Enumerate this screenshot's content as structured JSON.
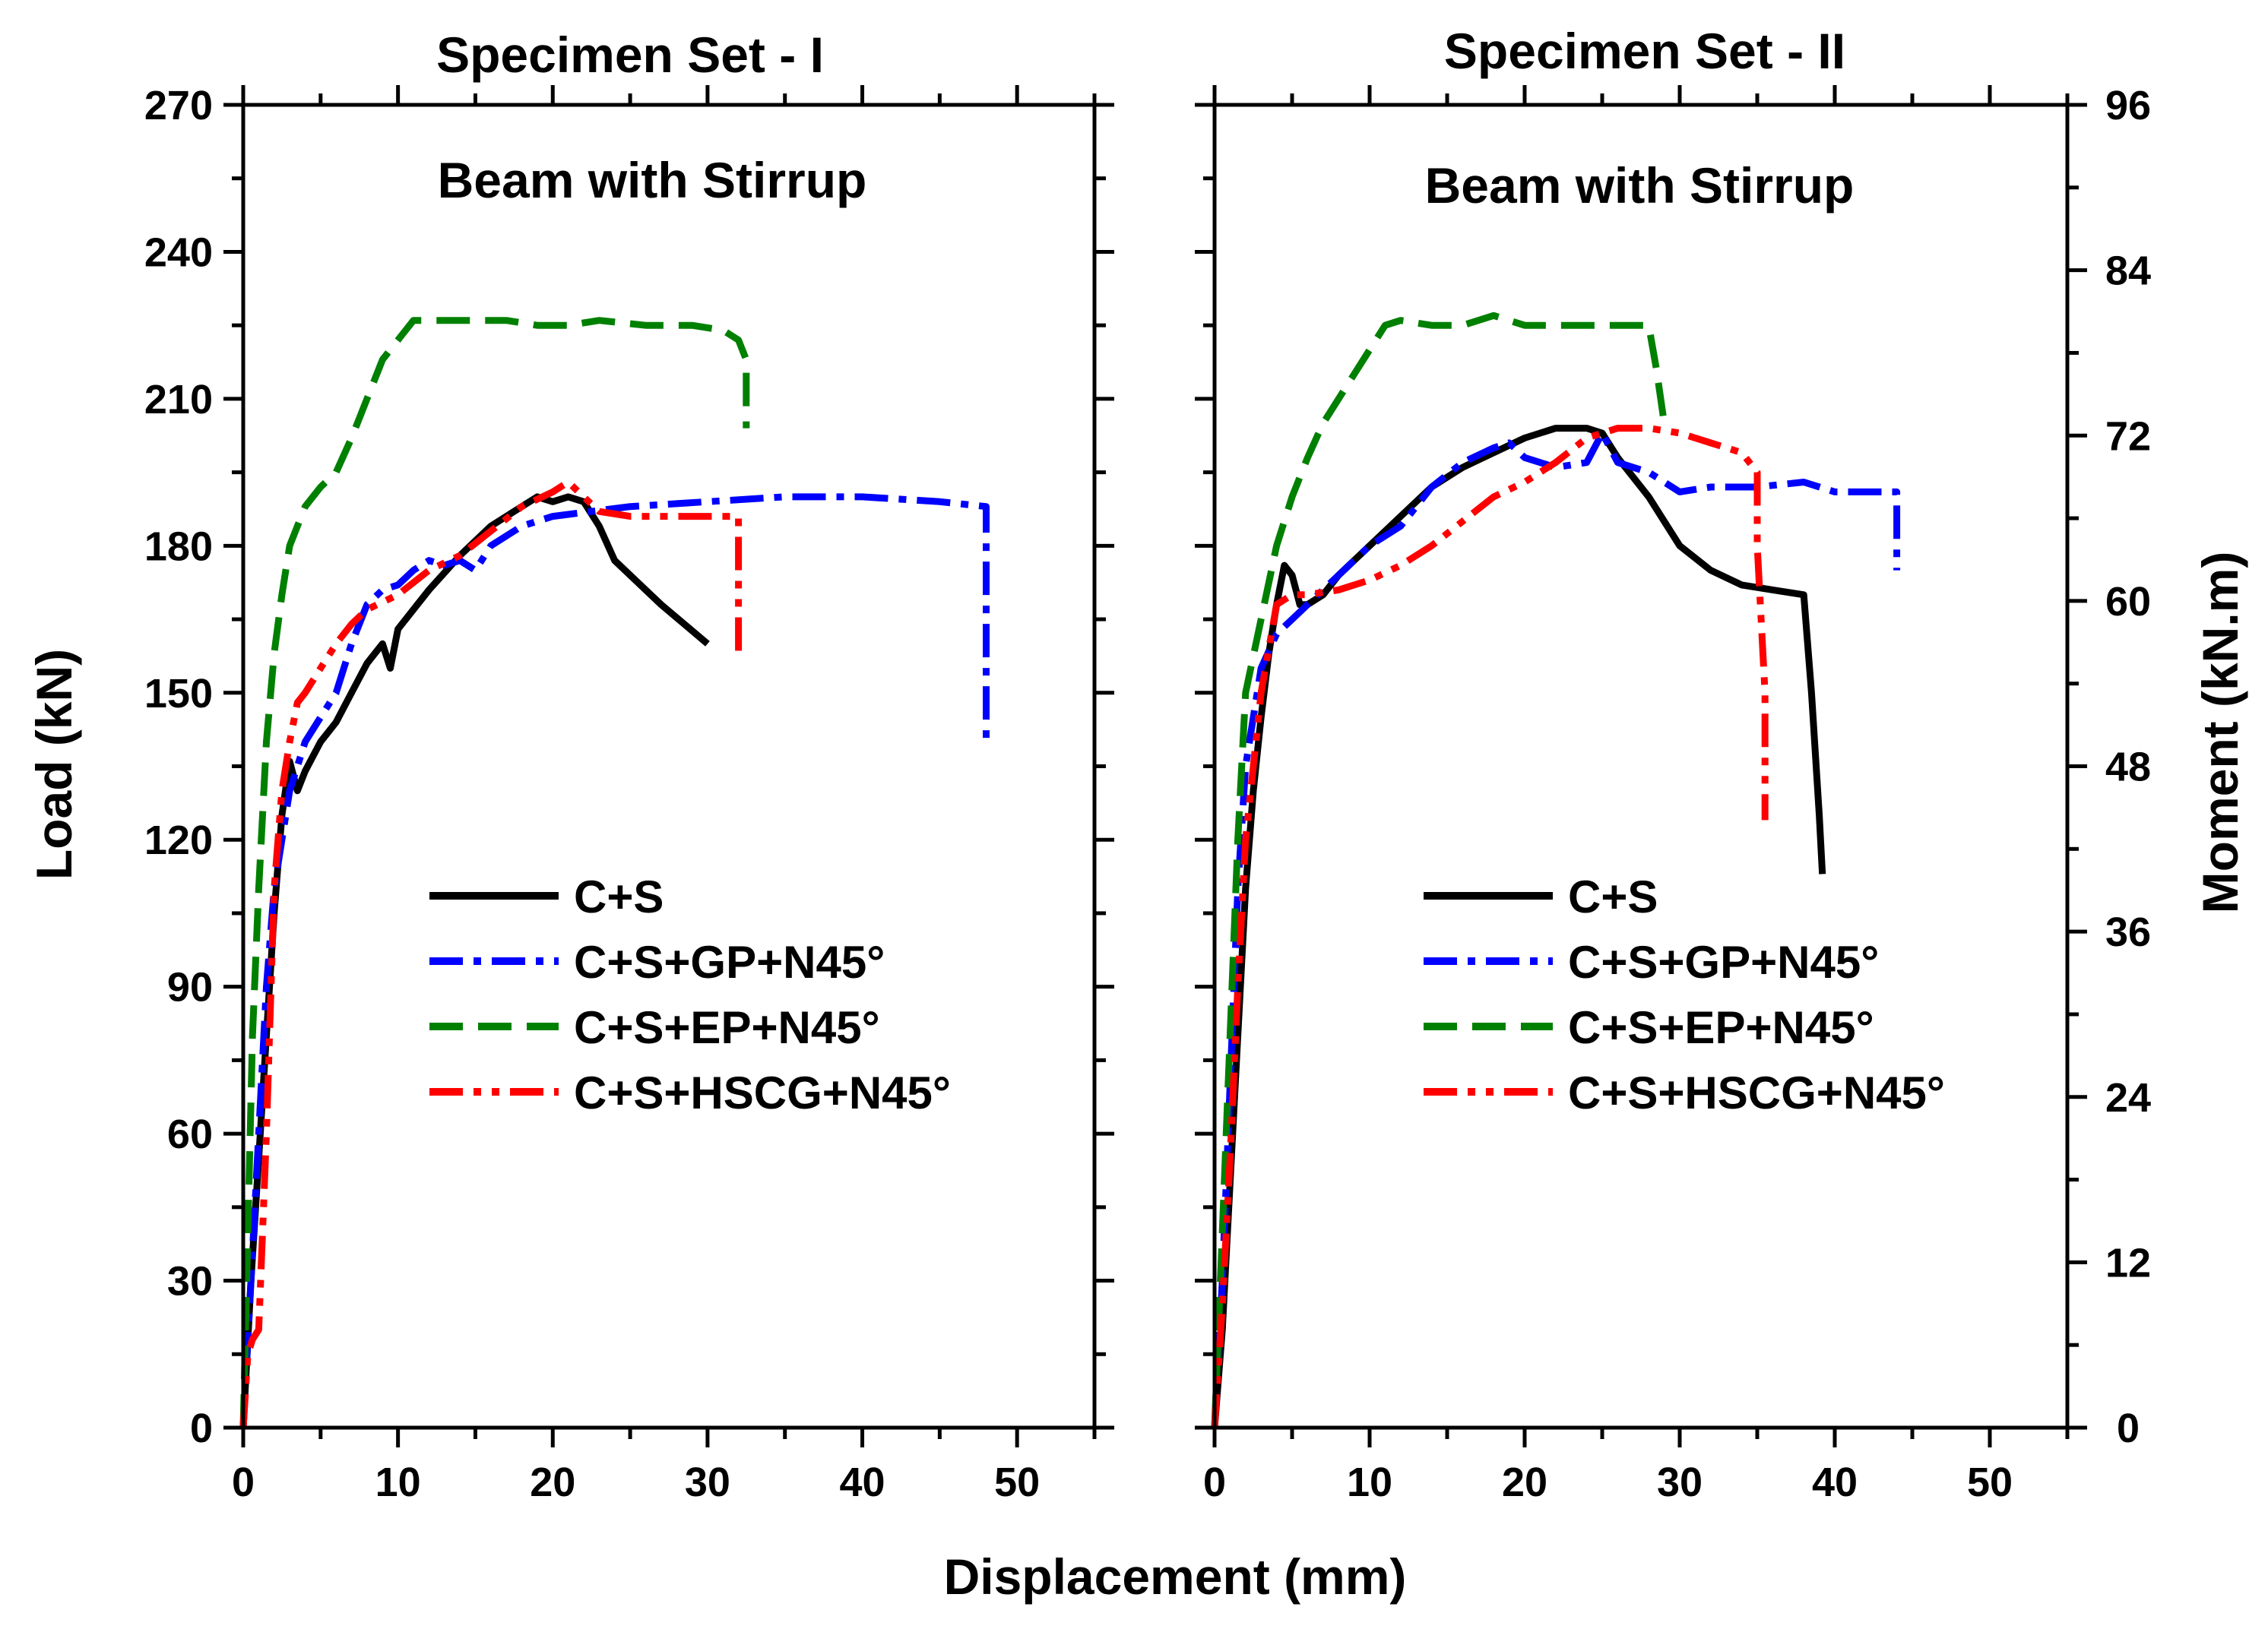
{
  "figure": {
    "xlabel": "Displacement (mm)",
    "ylabel": "Load (kN)",
    "ylabel_right": "Moment (kN.m)"
  },
  "legend": [
    "C+S",
    "C+S+GP+N45°",
    "C+S+EP+N45°",
    "C+S+HSCG+N45°"
  ],
  "colors": {
    "C+S": "#000000",
    "C+S+GP+N45°": "#0000ff",
    "C+S+EP+N45°": "#008000",
    "C+S+HSCG+N45°": "#ff0000"
  },
  "chart_data": [
    {
      "type": "line",
      "title": "Specimen Set - I",
      "subtitle": "Beam with Stirrup",
      "xlabel": "Displacement (mm)",
      "ylabel": "Load (kN)",
      "xlim": [
        0,
        55
      ],
      "ylim": [
        0,
        270
      ],
      "xticks": [
        0,
        10,
        20,
        30,
        40,
        50
      ],
      "yticks": [
        0,
        30,
        60,
        90,
        120,
        150,
        180,
        210,
        240,
        270
      ],
      "legend_position": "lower-right",
      "grid": false,
      "series": [
        {
          "name": "C+S",
          "style": "solid",
          "points": [
            [
              0,
              0
            ],
            [
              0.5,
              30
            ],
            [
              1,
              55
            ],
            [
              1.5,
              80
            ],
            [
              2,
              105
            ],
            [
              2.5,
              125
            ],
            [
              3,
              136
            ],
            [
              3.5,
              130
            ],
            [
              4,
              134
            ],
            [
              5,
              140
            ],
            [
              6,
              144
            ],
            [
              7,
              150
            ],
            [
              8,
              156
            ],
            [
              9,
              160
            ],
            [
              9.5,
              155
            ],
            [
              10,
              163
            ],
            [
              11,
              167
            ],
            [
              12,
              171
            ],
            [
              14,
              178
            ],
            [
              16,
              184
            ],
            [
              18,
              188
            ],
            [
              19,
              190
            ],
            [
              20,
              189
            ],
            [
              21,
              190
            ],
            [
              22,
              189
            ],
            [
              23,
              184
            ],
            [
              24,
              177
            ],
            [
              27,
              168
            ],
            [
              30,
              160
            ]
          ]
        },
        {
          "name": "C+S+GP+N45°",
          "style": "dashdot",
          "points": [
            [
              0,
              0
            ],
            [
              0.5,
              30
            ],
            [
              1,
              60
            ],
            [
              1.5,
              90
            ],
            [
              2,
              110
            ],
            [
              2.5,
              120
            ],
            [
              3,
              130
            ],
            [
              4,
              140
            ],
            [
              5,
              145
            ],
            [
              6,
              150
            ],
            [
              7,
              160
            ],
            [
              8,
              168
            ],
            [
              9,
              171
            ],
            [
              10,
              172
            ],
            [
              11,
              175
            ],
            [
              12,
              177
            ],
            [
              13,
              176
            ],
            [
              14,
              177
            ],
            [
              15,
              175
            ],
            [
              16,
              180
            ],
            [
              18,
              184
            ],
            [
              20,
              186
            ],
            [
              25,
              188
            ],
            [
              30,
              189
            ],
            [
              35,
              190
            ],
            [
              40,
              190
            ],
            [
              45,
              189
            ],
            [
              48,
              188
            ],
            [
              48,
              165
            ],
            [
              48,
              140
            ]
          ]
        },
        {
          "name": "C+S+EP+N45°",
          "style": "dashed",
          "points": [
            [
              0,
              0
            ],
            [
              0.3,
              40
            ],
            [
              0.6,
              80
            ],
            [
              1,
              110
            ],
            [
              1.5,
              140
            ],
            [
              2,
              158
            ],
            [
              2.5,
              170
            ],
            [
              3,
              180
            ],
            [
              4,
              188
            ],
            [
              5,
              192
            ],
            [
              6,
              195
            ],
            [
              7,
              202
            ],
            [
              8,
              210
            ],
            [
              9,
              218
            ],
            [
              10,
              222
            ],
            [
              11,
              226
            ],
            [
              13,
              226
            ],
            [
              15,
              226
            ],
            [
              17,
              226
            ],
            [
              19,
              225
            ],
            [
              21,
              225
            ],
            [
              23,
              226
            ],
            [
              26,
              225
            ],
            [
              29,
              225
            ],
            [
              31,
              224
            ],
            [
              32,
              222
            ],
            [
              32.5,
              218
            ],
            [
              32.5,
              212
            ],
            [
              32.5,
              204
            ]
          ]
        },
        {
          "name": "C+S+HSCG+N45°",
          "style": "dashdotdot",
          "points": [
            [
              0,
              0
            ],
            [
              0.3,
              15
            ],
            [
              0.6,
              18
            ],
            [
              1,
              20
            ],
            [
              1.5,
              60
            ],
            [
              2,
              110
            ],
            [
              2.5,
              130
            ],
            [
              3,
              140
            ],
            [
              3.5,
              148
            ],
            [
              4,
              150
            ],
            [
              5,
              155
            ],
            [
              6,
              160
            ],
            [
              7,
              164
            ],
            [
              8,
              167
            ],
            [
              10,
              170
            ],
            [
              12,
              175
            ],
            [
              14,
              178
            ],
            [
              16,
              183
            ],
            [
              18,
              188
            ],
            [
              20,
              191
            ],
            [
              21,
              193
            ],
            [
              22,
              190
            ],
            [
              23,
              187
            ],
            [
              25,
              186
            ],
            [
              28,
              186
            ],
            [
              30,
              186
            ],
            [
              32,
              186
            ],
            [
              32,
              175
            ],
            [
              32,
              157
            ]
          ]
        }
      ]
    },
    {
      "type": "line",
      "title": "Specimen Set - II",
      "subtitle": "Beam with Stirrup",
      "xlabel": "Displacement (mm)",
      "ylabel": "Moment (kN.m)",
      "xlim": [
        0,
        55
      ],
      "ylim": [
        0,
        96
      ],
      "load_ylim": [
        0,
        270
      ],
      "xticks": [
        0,
        10,
        20,
        30,
        40,
        50
      ],
      "yticks_right": [
        0,
        12,
        24,
        36,
        48,
        60,
        72,
        84,
        96
      ],
      "legend_position": "lower-right",
      "grid": false,
      "series": [
        {
          "name": "C+S",
          "style": "solid",
          "points": [
            [
              0,
              0
            ],
            [
              0.5,
              20
            ],
            [
              1,
              50
            ],
            [
              1.5,
              80
            ],
            [
              2,
              110
            ],
            [
              2.5,
              130
            ],
            [
              3,
              145
            ],
            [
              3.5,
              158
            ],
            [
              4,
              168
            ],
            [
              4.5,
              176
            ],
            [
              5,
              174
            ],
            [
              5.5,
              168
            ],
            [
              6,
              168
            ],
            [
              7,
              170
            ],
            [
              8,
              174
            ],
            [
              10,
              180
            ],
            [
              12,
              186
            ],
            [
              14,
              192
            ],
            [
              16,
              196
            ],
            [
              18,
              199
            ],
            [
              20,
              202
            ],
            [
              22,
              204
            ],
            [
              24,
              204
            ],
            [
              25,
              203
            ],
            [
              26,
              198
            ],
            [
              28,
              190
            ],
            [
              30,
              180
            ],
            [
              32,
              175
            ],
            [
              34,
              172
            ],
            [
              36,
              171
            ],
            [
              38,
              170
            ],
            [
              38.5,
              150
            ],
            [
              39,
              125
            ],
            [
              39.2,
              113
            ]
          ]
        },
        {
          "name": "C+S+GP+N45°",
          "style": "dashdot",
          "points": [
            [
              0,
              0
            ],
            [
              0.5,
              30
            ],
            [
              1,
              70
            ],
            [
              1.5,
              110
            ],
            [
              2,
              135
            ],
            [
              3,
              155
            ],
            [
              4,
              162
            ],
            [
              5,
              165
            ],
            [
              6,
              168
            ],
            [
              8,
              174
            ],
            [
              10,
              180
            ],
            [
              12,
              184
            ],
            [
              14,
              192
            ],
            [
              16,
              197
            ],
            [
              18,
              200
            ],
            [
              19,
              201
            ],
            [
              20,
              198
            ],
            [
              22,
              196
            ],
            [
              24,
              197
            ],
            [
              25,
              203
            ],
            [
              26,
              197
            ],
            [
              28,
              195
            ],
            [
              30,
              191
            ],
            [
              32,
              192
            ],
            [
              35,
              192
            ],
            [
              38,
              193
            ],
            [
              40,
              191
            ],
            [
              42,
              191
            ],
            [
              44,
              191
            ],
            [
              44,
              185
            ],
            [
              44,
              175
            ]
          ]
        },
        {
          "name": "C+S+EP+N45°",
          "style": "dashed",
          "points": [
            [
              0,
              0
            ],
            [
              0.5,
              40
            ],
            [
              1,
              80
            ],
            [
              1.5,
              120
            ],
            [
              2,
              150
            ],
            [
              3,
              165
            ],
            [
              4,
              180
            ],
            [
              5,
              190
            ],
            [
              6,
              198
            ],
            [
              7,
              205
            ],
            [
              8,
              210
            ],
            [
              9,
              215
            ],
            [
              10,
              220
            ],
            [
              11,
              225
            ],
            [
              12,
              226
            ],
            [
              14,
              225
            ],
            [
              16,
              225
            ],
            [
              18,
              227
            ],
            [
              20,
              225
            ],
            [
              22,
              225
            ],
            [
              24,
              225
            ],
            [
              26,
              225
            ],
            [
              28,
              225
            ],
            [
              28.5,
              216
            ],
            [
              29,
              205
            ]
          ]
        },
        {
          "name": "C+S+HSCG+N45°",
          "style": "dashdotdot",
          "points": [
            [
              0,
              0
            ],
            [
              0.5,
              25
            ],
            [
              1,
              55
            ],
            [
              1.5,
              90
            ],
            [
              2,
              120
            ],
            [
              3,
              150
            ],
            [
              4,
              168
            ],
            [
              5,
              170
            ],
            [
              6,
              170
            ],
            [
              8,
              171
            ],
            [
              10,
              173
            ],
            [
              12,
              176
            ],
            [
              14,
              180
            ],
            [
              16,
              185
            ],
            [
              18,
              190
            ],
            [
              20,
              193
            ],
            [
              22,
              197
            ],
            [
              24,
              202
            ],
            [
              26,
              204
            ],
            [
              28,
              204
            ],
            [
              30,
              203
            ],
            [
              32,
              201
            ],
            [
              34,
              199
            ],
            [
              35,
              195
            ],
            [
              35,
              180
            ],
            [
              35.5,
              150
            ],
            [
              35.5,
              124
            ]
          ]
        }
      ]
    }
  ]
}
